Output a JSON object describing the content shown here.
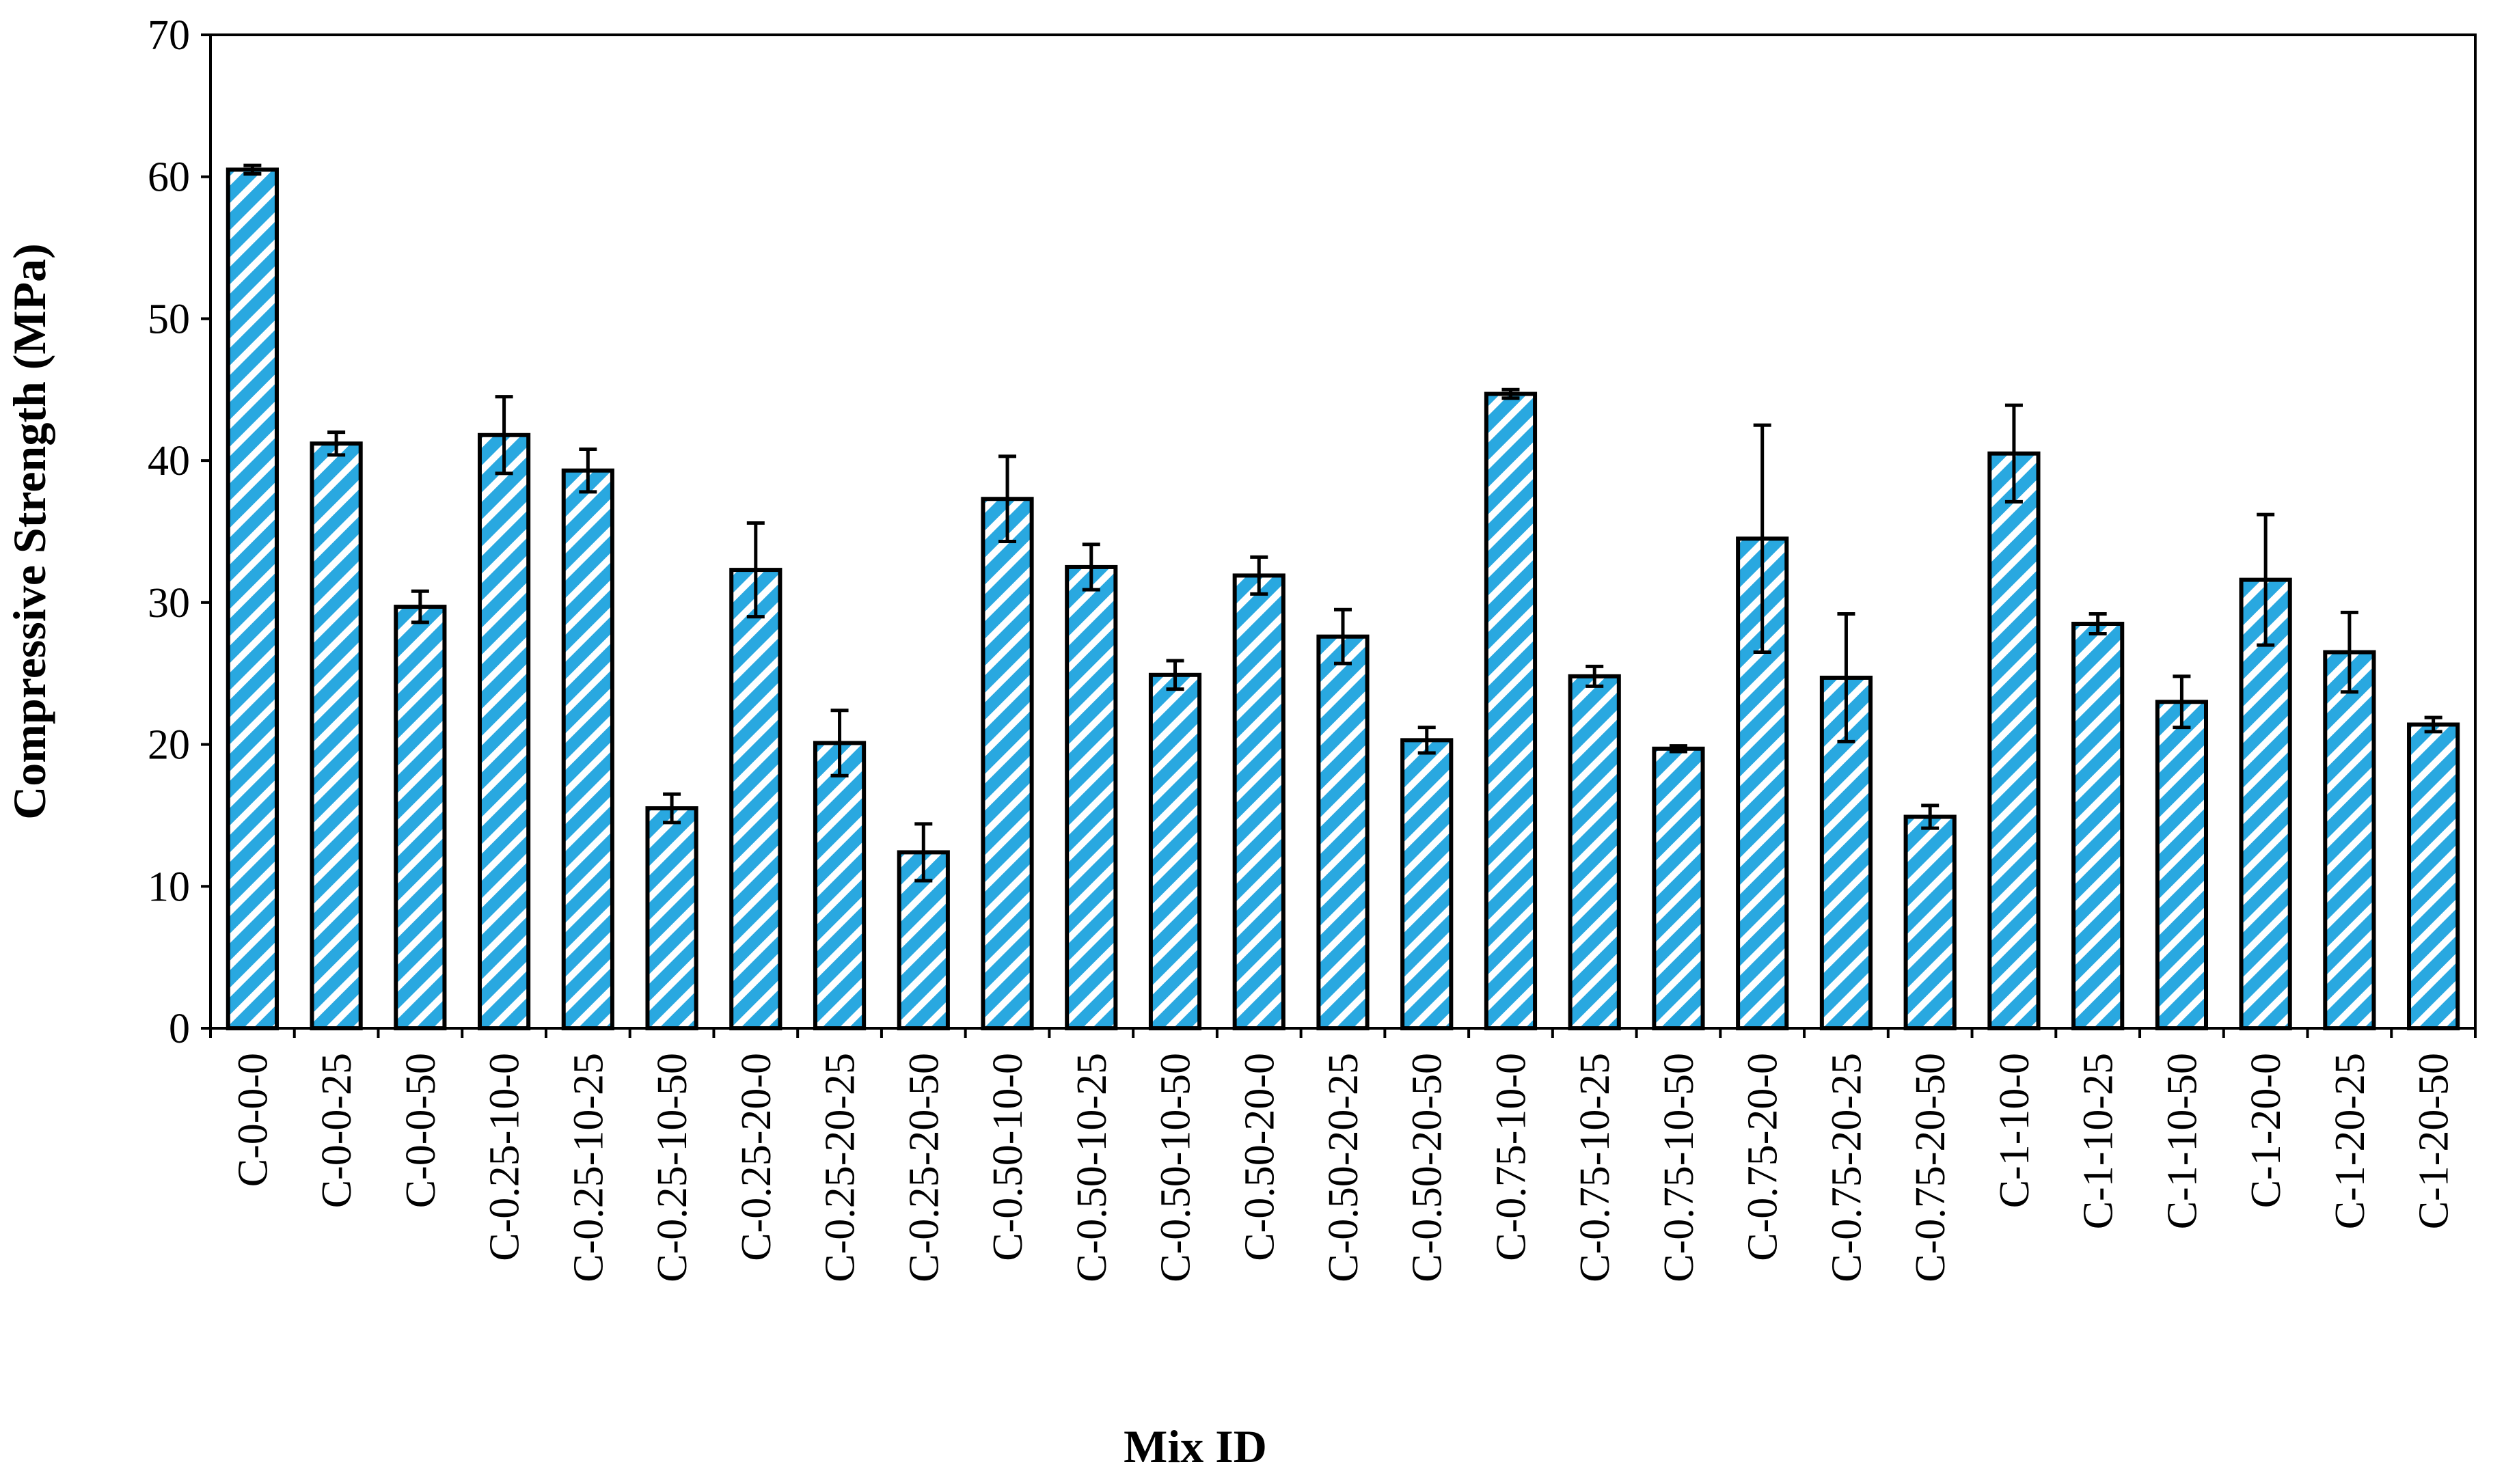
{
  "chart_data": {
    "type": "bar",
    "title": "",
    "xlabel": "Mix ID",
    "ylabel": "Compressive Strength (MPa)",
    "ylim": [
      0,
      70
    ],
    "yticks": [
      "0",
      "10",
      "20",
      "30",
      "40",
      "50",
      "60",
      "70"
    ],
    "grid": false,
    "legend": "none",
    "bar_fill_color": "#29a8e0",
    "bar_hatch_color": "#ffffff",
    "bar_edge_color": "#000000",
    "categories": [
      "C-0-0-0",
      "C-0-0-25",
      "C-0-0-50",
      "C-0.25-10-0",
      "C-0.25-10-25",
      "C-0.25-10-50",
      "C-0.25-20-0",
      "C-0.25-20-25",
      "C-0.25-20-50",
      "C-0.50-10-0",
      "C-0.50-10-25",
      "C-0.50-10-50",
      "C-0.50-20-0",
      "C-0.50-20-25",
      "C-0.50-20-50",
      "C-0.75-10-0",
      "C-0.75-10-25",
      "C-0.75-10-50",
      "C-0.75-20-0",
      "C-0.75-20-25",
      "C-0.75-20-50",
      "C-1-10-0",
      "C-1-10-25",
      "C-1-10-50",
      "C-1-20-0",
      "C-1-20-25",
      "C-1-20-50"
    ],
    "values": [
      60.5,
      41.2,
      29.7,
      41.8,
      39.3,
      15.5,
      32.3,
      20.1,
      12.4,
      37.3,
      32.5,
      24.9,
      31.9,
      27.6,
      20.3,
      44.7,
      24.8,
      19.7,
      34.5,
      24.7,
      14.9,
      40.5,
      28.5,
      23.0,
      31.6,
      26.5,
      21.4
    ],
    "error": [
      0.3,
      0.8,
      1.1,
      2.7,
      1.5,
      1.0,
      3.3,
      2.3,
      2.0,
      3.0,
      1.6,
      1.0,
      1.3,
      1.9,
      0.9,
      0.3,
      0.7,
      0.2,
      8.0,
      4.5,
      0.8,
      3.4,
      0.7,
      1.8,
      4.6,
      2.8,
      0.5
    ]
  }
}
